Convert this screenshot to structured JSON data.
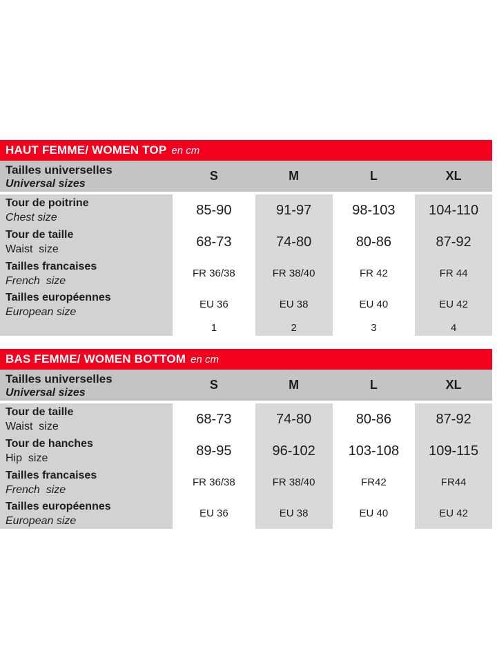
{
  "colors": {
    "accent_red": "#f2001d",
    "header_gray": "#c4c4c4",
    "label_gray": "#d2d2d2",
    "cell_gray": "#d9d9d9",
    "text": "#1d1d1b"
  },
  "tables": [
    {
      "title": "HAUT FEMME/ WOMEN TOP",
      "unit": "en cm",
      "header": {
        "label_fr": "Tailles universelles",
        "label_en": "Universal sizes",
        "sizes": [
          "S",
          "M",
          "L",
          "XL"
        ]
      },
      "rows": [
        {
          "label_fr": "Tour de poitrine",
          "label_en": "Chest size",
          "italic_en": true,
          "style": "lg",
          "values": [
            "85-90",
            "91-97",
            "98-103",
            "104-110"
          ]
        },
        {
          "label_fr": "Tour de taille",
          "label_en": "Waist  size",
          "italic_en": false,
          "style": "lg",
          "values": [
            "68-73",
            "74-80",
            "80-86",
            "87-92"
          ]
        },
        {
          "label_fr": "Tailles francaises",
          "label_en": "French  size",
          "italic_en": true,
          "style": "sm",
          "values": [
            "FR 36/38",
            "FR 38/40",
            "FR 42",
            "FR 44"
          ]
        },
        {
          "label_fr": "Tailles européennes",
          "label_en": "European size",
          "italic_en": true,
          "style": "sm",
          "values": [
            "EU 36",
            "EU 38",
            "EU 40",
            "EU 42"
          ]
        },
        {
          "label_fr": "",
          "label_en": "",
          "italic_en": false,
          "style": "num",
          "values": [
            "1",
            "2",
            "3",
            "4"
          ]
        }
      ]
    },
    {
      "title": "BAS FEMME/ WOMEN BOTTOM",
      "unit": "en cm",
      "header": {
        "label_fr": "Tailles universelles",
        "label_en": "Universal sizes",
        "sizes": [
          "S",
          "M",
          "L",
          "XL"
        ]
      },
      "rows": [
        {
          "label_fr": "Tour de taille",
          "label_en": "Waist  size",
          "italic_en": false,
          "style": "lg",
          "values": [
            "68-73",
            "74-80",
            "80-86",
            "87-92"
          ]
        },
        {
          "label_fr": "Tour de hanches",
          "label_en": "Hip  size",
          "italic_en": false,
          "style": "lg",
          "values": [
            "89-95",
            "96-102",
            "103-108",
            "109-115"
          ]
        },
        {
          "label_fr": "Tailles francaises",
          "label_en": "French  size",
          "italic_en": true,
          "style": "sm",
          "values": [
            "FR 36/38",
            "FR 38/40",
            "FR42",
            "FR44"
          ]
        },
        {
          "label_fr": "Tailles européennes",
          "label_en": "European size",
          "italic_en": true,
          "style": "sm",
          "values": [
            "EU 36",
            "EU 38",
            "EU 40",
            "EU 42"
          ]
        }
      ]
    }
  ]
}
